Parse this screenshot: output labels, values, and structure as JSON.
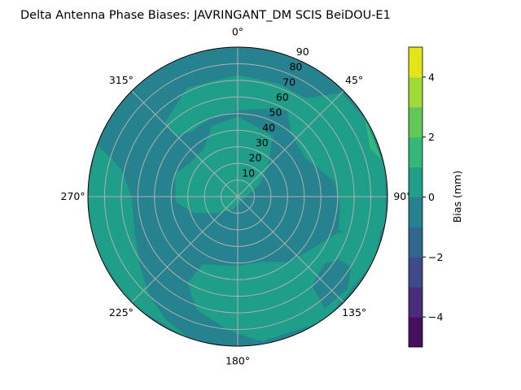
{
  "chart_data": {
    "type": "polar-contour",
    "title": "Delta Antenna Phase Biases: JAVRINGANT_DM   SCIS BeiDOU-E1",
    "angular_ticks": [
      {
        "deg": 0,
        "label": "0°"
      },
      {
        "deg": 45,
        "label": "45°"
      },
      {
        "deg": 90,
        "label": "90°"
      },
      {
        "deg": 135,
        "label": "135°"
      },
      {
        "deg": 180,
        "label": "180°"
      },
      {
        "deg": 225,
        "label": "225°"
      },
      {
        "deg": 270,
        "label": "270°"
      },
      {
        "deg": 315,
        "label": "315°"
      }
    ],
    "radial_ticks": [
      10,
      20,
      30,
      40,
      50,
      60,
      70,
      80,
      90
    ],
    "radial_range": [
      0,
      90
    ],
    "angular_direction": "clockwise",
    "zero_location": "north",
    "grid": true,
    "colorbar": {
      "label": "Bias (mm)",
      "range": [
        -5,
        5
      ],
      "levels": [
        -5,
        -4,
        -3,
        -2,
        -1,
        0,
        1,
        2,
        3,
        4,
        5
      ],
      "colors": [
        "#45115f",
        "#482e7a",
        "#3e4a89",
        "#31688e",
        "#26828e",
        "#1f9e89",
        "#35b779",
        "#63c65a",
        "#a0da39",
        "#e5e419"
      ],
      "ticks": [
        -4,
        -2,
        0,
        2,
        4
      ],
      "tick_labels": [
        "−4",
        "−2",
        "0",
        "2",
        "4"
      ]
    },
    "background_level": "-1 to 0",
    "regions": [
      {
        "level": "0 to 1",
        "points": [
          [
            315,
            62
          ],
          [
            335,
            72
          ],
          [
            0,
            73
          ],
          [
            20,
            72
          ],
          [
            35,
            72
          ],
          [
            45,
            88
          ],
          [
            60,
            90
          ],
          [
            80,
            90
          ],
          [
            100,
            90
          ],
          [
            110,
            85
          ],
          [
            108,
            64
          ],
          [
            95,
            62
          ],
          [
            81,
            59
          ],
          [
            60,
            47
          ],
          [
            40,
            50
          ],
          [
            30,
            60
          ],
          [
            15,
            55
          ],
          [
            0,
            52
          ],
          [
            340,
            50
          ],
          [
            325,
            48
          ],
          [
            315,
            52
          ]
        ]
      },
      {
        "level": "0 to 1",
        "points": [
          [
            270,
            37
          ],
          [
            290,
            40
          ],
          [
            305,
            35
          ],
          [
            325,
            35
          ],
          [
            340,
            45
          ],
          [
            0,
            48
          ],
          [
            30,
            42
          ],
          [
            45,
            25
          ],
          [
            60,
            15
          ],
          [
            90,
            5
          ],
          [
            135,
            3
          ],
          [
            200,
            8
          ],
          [
            230,
            15
          ],
          [
            250,
            28
          ],
          [
            265,
            37
          ]
        ]
      },
      {
        "level": "0 to 1",
        "points": [
          [
            290,
            90
          ],
          [
            287,
            80
          ],
          [
            283,
            72
          ],
          [
            270,
            64
          ],
          [
            250,
            66
          ],
          [
            235,
            72
          ],
          [
            222,
            80
          ],
          [
            210,
            86
          ],
          [
            198,
            91
          ],
          [
            225,
            91
          ],
          [
            250,
            91
          ],
          [
            270,
            91
          ]
        ]
      },
      {
        "level": "0 to 1",
        "points": [
          [
            207,
            46
          ],
          [
            180,
            42
          ],
          [
            160,
            42
          ],
          [
            142,
            50
          ],
          [
            125,
            55
          ],
          [
            110,
            64
          ],
          [
            104,
            88
          ],
          [
            115,
            91
          ],
          [
            145,
            91
          ],
          [
            170,
            88
          ],
          [
            175,
            85
          ],
          [
            185,
            80
          ],
          [
            200,
            72
          ],
          [
            210,
            60
          ]
        ]
      },
      {
        "level": "-1 to 0",
        "points": [
          [
            122,
            72
          ],
          [
            128,
            66
          ],
          [
            140,
            70
          ],
          [
            142,
            85
          ],
          [
            130,
            86
          ],
          [
            122,
            80
          ]
        ]
      },
      {
        "level": "1 to 2",
        "points": [
          [
            60,
            89
          ],
          [
            70,
            85
          ],
          [
            75,
            89
          ]
        ]
      }
    ]
  }
}
